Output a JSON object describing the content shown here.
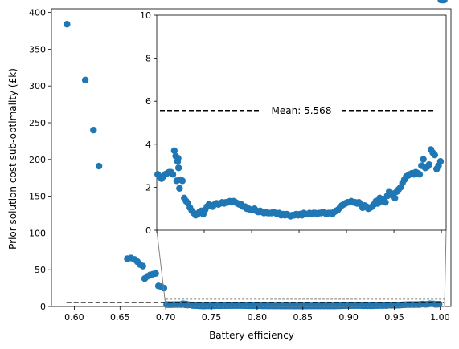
{
  "chart_data": [
    {
      "type": "scatter",
      "xlabel": "Battery efficiency",
      "ylabel": "Prior solution cost sub-optimality (£k)",
      "xlim": [
        0.575,
        1.012
      ],
      "ylim": [
        0,
        405
      ],
      "xticks": [
        "0.60",
        "0.65",
        "0.70",
        "0.75",
        "0.80",
        "0.85",
        "0.90",
        "0.95",
        "1.00"
      ],
      "xtick_values": [
        0.6,
        0.65,
        0.7,
        0.75,
        0.8,
        0.85,
        0.9,
        0.95,
        1.0
      ],
      "yticks": [
        "0",
        "50",
        "100",
        "150",
        "200",
        "250",
        "300",
        "350",
        "400"
      ],
      "ytick_values": [
        0,
        50,
        100,
        150,
        200,
        250,
        300,
        350,
        400
      ],
      "mean_line_y": 5.568,
      "series_color": "#1f77b4",
      "mean_color": "#000000",
      "points_x": [
        0.592,
        0.612,
        0.621,
        0.627,
        0.658,
        0.662,
        0.666,
        0.669,
        0.672,
        0.675,
        0.677,
        0.68,
        0.683,
        0.686,
        0.689,
        0.692,
        0.695,
        0.698
      ],
      "points_y": [
        384,
        308,
        240,
        191,
        65,
        66,
        64,
        61,
        57,
        55,
        38,
        41,
        43,
        44,
        45,
        28,
        27,
        25
      ]
    },
    {
      "type": "scatter",
      "inset": true,
      "xlim": [
        0.7,
        1.005
      ],
      "ylim": [
        0,
        10
      ],
      "yticks": [
        "0",
        "2",
        "4",
        "6",
        "8",
        "10"
      ],
      "ytick_values": [
        0,
        2,
        4,
        6,
        8,
        10
      ],
      "mean_line_y": 5.568,
      "mean_label": "Mean: 5.568",
      "series_color": "#1f77b4",
      "points_x": [
        0.701,
        0.703,
        0.705,
        0.707,
        0.709,
        0.711,
        0.713,
        0.715,
        0.717,
        0.7185,
        0.72,
        0.721,
        0.722,
        0.7225,
        0.723,
        0.724,
        0.725,
        0.727,
        0.729,
        0.731,
        0.733,
        0.735,
        0.737,
        0.739,
        0.741,
        0.743,
        0.745,
        0.747,
        0.749,
        0.751,
        0.753,
        0.755,
        0.757,
        0.759,
        0.761,
        0.763,
        0.765,
        0.767,
        0.769,
        0.771,
        0.773,
        0.775,
        0.777,
        0.779,
        0.781,
        0.783,
        0.785,
        0.787,
        0.789,
        0.791,
        0.793,
        0.795,
        0.797,
        0.799,
        0.801,
        0.803,
        0.805,
        0.807,
        0.809,
        0.811,
        0.813,
        0.815,
        0.817,
        0.819,
        0.821,
        0.823,
        0.825,
        0.827,
        0.829,
        0.831,
        0.833,
        0.835,
        0.837,
        0.839,
        0.841,
        0.843,
        0.845,
        0.847,
        0.849,
        0.851,
        0.853,
        0.855,
        0.857,
        0.859,
        0.861,
        0.863,
        0.865,
        0.867,
        0.869,
        0.871,
        0.873,
        0.875,
        0.877,
        0.879,
        0.881,
        0.883,
        0.885,
        0.887,
        0.889,
        0.891,
        0.893,
        0.895,
        0.897,
        0.899,
        0.901,
        0.903,
        0.905,
        0.907,
        0.909,
        0.911,
        0.913,
        0.915,
        0.917,
        0.919,
        0.921,
        0.923,
        0.925,
        0.927,
        0.929,
        0.931,
        0.933,
        0.935,
        0.937,
        0.939,
        0.941,
        0.943,
        0.945,
        0.947,
        0.949,
        0.951,
        0.953,
        0.955,
        0.957,
        0.959,
        0.961,
        0.963,
        0.965,
        0.967,
        0.969,
        0.971,
        0.973,
        0.975,
        0.977,
        0.979,
        0.981,
        0.983,
        0.985,
        0.987,
        0.989,
        0.991,
        0.993,
        0.995,
        0.997,
        0.999,
        1.001,
        1.003
      ],
      "points_y": [
        2.6,
        2.5,
        2.4,
        2.5,
        2.6,
        2.65,
        2.7,
        2.7,
        2.6,
        3.7,
        3.45,
        2.3,
        3.2,
        3.35,
        2.9,
        1.95,
        2.35,
        2.3,
        1.5,
        1.35,
        1.25,
        1.05,
        0.9,
        0.8,
        0.7,
        0.75,
        0.85,
        0.9,
        0.75,
        0.95,
        1.1,
        1.2,
        1.15,
        1.1,
        1.2,
        1.25,
        1.2,
        1.25,
        1.3,
        1.25,
        1.3,
        1.3,
        1.35,
        1.3,
        1.35,
        1.3,
        1.25,
        1.2,
        1.2,
        1.1,
        1.1,
        1.0,
        1.0,
        0.95,
        0.95,
        1.0,
        0.9,
        0.85,
        0.9,
        0.85,
        0.8,
        0.85,
        0.8,
        0.8,
        0.8,
        0.85,
        0.8,
        0.75,
        0.8,
        0.7,
        0.75,
        0.7,
        0.75,
        0.7,
        0.65,
        0.7,
        0.7,
        0.75,
        0.7,
        0.75,
        0.7,
        0.8,
        0.75,
        0.75,
        0.8,
        0.75,
        0.8,
        0.8,
        0.75,
        0.8,
        0.8,
        0.85,
        0.8,
        0.75,
        0.8,
        0.8,
        0.75,
        0.85,
        0.9,
        0.95,
        1.05,
        1.15,
        1.2,
        1.25,
        1.3,
        1.3,
        1.35,
        1.3,
        1.3,
        1.25,
        1.3,
        1.2,
        1.05,
        1.15,
        1.1,
        1.0,
        1.05,
        1.1,
        1.2,
        1.35,
        1.25,
        1.5,
        1.35,
        1.45,
        1.3,
        1.6,
        1.8,
        1.65,
        1.7,
        1.5,
        1.8,
        1.9,
        2.0,
        2.2,
        2.35,
        2.5,
        2.55,
        2.6,
        2.65,
        2.6,
        2.7,
        2.65,
        2.6,
        3.0,
        3.3,
        2.9,
        2.95,
        3.05,
        3.75,
        3.6,
        3.5,
        2.85,
        3.0,
        3.2
      ]
    }
  ]
}
